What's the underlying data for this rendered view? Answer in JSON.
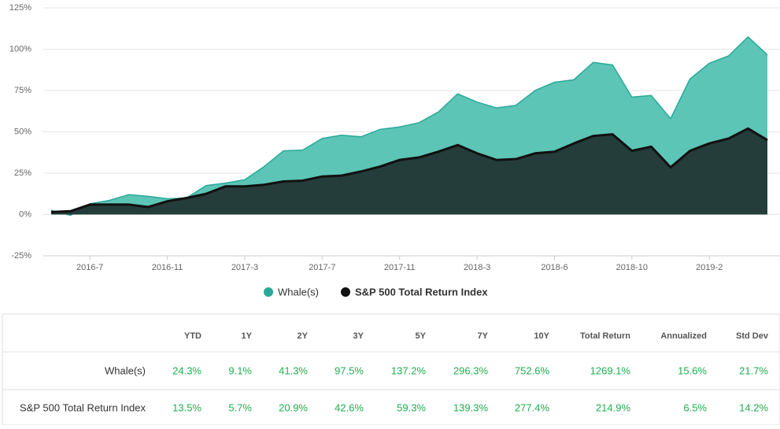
{
  "chart_data": {
    "type": "area",
    "categories": [
      null,
      null,
      "2016-7",
      null,
      null,
      null,
      "2016-11",
      null,
      null,
      null,
      "2017-3",
      null,
      null,
      null,
      "2017-7",
      null,
      null,
      null,
      "2017-11",
      null,
      null,
      null,
      "2018-3",
      null,
      null,
      null,
      "2018-6",
      null,
      null,
      null,
      "2018-10",
      null,
      null,
      null,
      "2019-2",
      null,
      null,
      null
    ],
    "series": [
      {
        "name": "Whale(s)",
        "color": "#2aa99a",
        "fill": "#5cc5b5",
        "values": [
          2.5,
          -0.5,
          6.5,
          8.5,
          12,
          11,
          9.5,
          10,
          17.5,
          19,
          21,
          29,
          38.5,
          39,
          46,
          48,
          47,
          51.5,
          53,
          55.5,
          62,
          73,
          68,
          64.5,
          66,
          75,
          80,
          81.5,
          92,
          90.5,
          71,
          72,
          58,
          82,
          91.5,
          96,
          107.5,
          96.5
        ]
      },
      {
        "name": "S&P 500 Total Return Index",
        "color": "#111111",
        "fill": "#243c3a",
        "values": [
          1.5,
          2,
          6,
          6,
          6,
          4.5,
          8,
          10,
          12.5,
          17,
          17,
          18,
          20,
          20.5,
          23,
          23.5,
          26,
          29,
          33,
          34.5,
          38,
          42,
          37,
          33,
          33.5,
          37,
          38,
          43,
          47.5,
          48.5,
          38.5,
          41,
          28.5,
          38.5,
          43,
          46,
          52,
          45
        ]
      }
    ],
    "ylim": [
      -25,
      125
    ],
    "yticks": [
      {
        "value": -25,
        "label": "-25%"
      },
      {
        "value": 0,
        "label": "0%"
      },
      {
        "value": 25,
        "label": "25%"
      },
      {
        "value": 50,
        "label": "50%"
      },
      {
        "value": 75,
        "label": "75%"
      },
      {
        "value": 100,
        "label": "100%"
      },
      {
        "value": 125,
        "label": "125%"
      }
    ],
    "grid": true,
    "legend": "bottom"
  },
  "table": {
    "columns": [
      "YTD",
      "1Y",
      "2Y",
      "3Y",
      "5Y",
      "7Y",
      "10Y",
      "Total Return",
      "Annualized",
      "Std Dev"
    ],
    "rows": [
      [
        "Whale(s)",
        "24.3%",
        "9.1%",
        "41.3%",
        "97.5%",
        "137.2%",
        "296.3%",
        "752.6%",
        "1269.1%",
        "15.6%",
        "21.7%"
      ],
      [
        "S&P 500 Total Return Index",
        "13.5%",
        "5.7%",
        "20.9%",
        "42.6%",
        "59.3%",
        "139.3%",
        "277.4%",
        "214.9%",
        "6.5%",
        "14.2%"
      ]
    ]
  }
}
